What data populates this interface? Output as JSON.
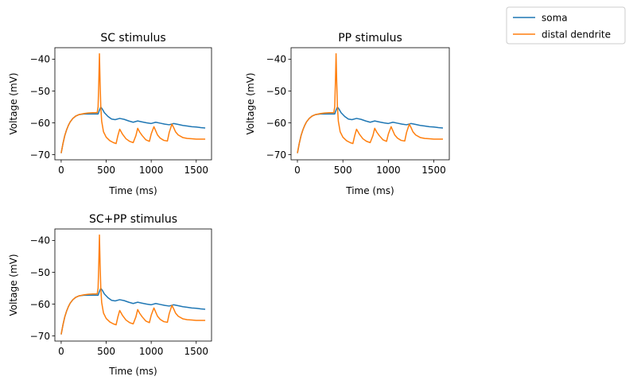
{
  "chart_data": [
    {
      "type": "line",
      "title": "SC stimulus",
      "xlabel": "Time (ms)",
      "ylabel": "Voltage (mV)",
      "xlim": [
        -70,
        1670
      ],
      "ylim": [
        -71.6,
        -36.4
      ],
      "xticks": [
        0,
        500,
        1000,
        1500
      ],
      "yticks": [
        -70,
        -60,
        -50,
        -40
      ],
      "grid": false,
      "series": [
        {
          "name": "soma",
          "color": "#1f77b4",
          "x": [
            0,
            20,
            40,
            60,
            80,
            100,
            130,
            160,
            200,
            250,
            300,
            350,
            410,
            425,
            440,
            460,
            480,
            520,
            560,
            600,
            650,
            700,
            750,
            800,
            850,
            900,
            950,
            1000,
            1050,
            1100,
            1150,
            1200,
            1250,
            1300,
            1350,
            1400,
            1450,
            1500,
            1550,
            1600
          ],
          "y": [
            -69.5,
            -66.5,
            -64,
            -62.2,
            -60.8,
            -59.7,
            -58.6,
            -57.9,
            -57.4,
            -57.2,
            -57.2,
            -57.2,
            -57.2,
            -56,
            -55,
            -55.8,
            -56.8,
            -58,
            -58.8,
            -59,
            -58.6,
            -58.9,
            -59.4,
            -59.8,
            -59.4,
            -59.7,
            -60,
            -60.2,
            -59.8,
            -60.1,
            -60.4,
            -60.6,
            -60.2,
            -60.5,
            -60.8,
            -61,
            -61.2,
            -61.3,
            -61.5,
            -61.6
          ]
        },
        {
          "name": "distal dendrite",
          "color": "#ff7f0e",
          "x": [
            0,
            20,
            40,
            60,
            80,
            100,
            130,
            160,
            200,
            250,
            300,
            350,
            400,
            410,
            418,
            425,
            432,
            440,
            450,
            470,
            500,
            540,
            580,
            610,
            630,
            650,
            680,
            720,
            760,
            800,
            830,
            850,
            870,
            900,
            940,
            980,
            1000,
            1030,
            1050,
            1070,
            1100,
            1140,
            1180,
            1200,
            1230,
            1250,
            1270,
            1300,
            1350,
            1400,
            1450,
            1500,
            1550,
            1600
          ],
          "y": [
            -69.5,
            -66.5,
            -64,
            -62.2,
            -60.8,
            -59.7,
            -58.6,
            -57.9,
            -57.4,
            -57.1,
            -56.9,
            -56.8,
            -56.8,
            -55,
            -47,
            -38.3,
            -47,
            -55,
            -59.5,
            -62.8,
            -64.5,
            -65.6,
            -66.2,
            -66.5,
            -64,
            -62,
            -63.5,
            -65,
            -65.8,
            -66.2,
            -64,
            -61.7,
            -62.8,
            -64,
            -65.3,
            -65.8,
            -63.5,
            -61.2,
            -62.5,
            -63.8,
            -64.8,
            -65.5,
            -65.7,
            -63,
            -60.4,
            -61.5,
            -62.8,
            -63.8,
            -64.6,
            -64.9,
            -65,
            -65.1,
            -65.1,
            -65.1
          ]
        }
      ]
    },
    {
      "type": "line",
      "title": "PP stimulus",
      "xlabel": "Time (ms)",
      "ylabel": "Voltage (mV)",
      "xlim": [
        -70,
        1670
      ],
      "ylim": [
        -71.6,
        -36.4
      ],
      "xticks": [
        0,
        500,
        1000,
        1500
      ],
      "yticks": [
        -70,
        -60,
        -50,
        -40
      ],
      "grid": false,
      "series": [
        {
          "name": "soma",
          "color": "#1f77b4",
          "x": [
            0,
            20,
            40,
            60,
            80,
            100,
            130,
            160,
            200,
            250,
            300,
            350,
            410,
            425,
            440,
            460,
            480,
            520,
            560,
            600,
            650,
            700,
            750,
            800,
            850,
            900,
            950,
            1000,
            1050,
            1100,
            1150,
            1200,
            1250,
            1300,
            1350,
            1400,
            1450,
            1500,
            1550,
            1600
          ],
          "y": [
            -69.5,
            -66.5,
            -64,
            -62.2,
            -60.8,
            -59.7,
            -58.6,
            -57.9,
            -57.4,
            -57.2,
            -57.2,
            -57.2,
            -57.2,
            -56,
            -55,
            -55.8,
            -56.8,
            -58,
            -58.8,
            -59,
            -58.6,
            -58.9,
            -59.4,
            -59.8,
            -59.4,
            -59.7,
            -60,
            -60.2,
            -59.8,
            -60.1,
            -60.4,
            -60.6,
            -60.2,
            -60.5,
            -60.8,
            -61,
            -61.2,
            -61.3,
            -61.5,
            -61.6
          ]
        },
        {
          "name": "distal dendrite",
          "color": "#ff7f0e",
          "x": [
            0,
            20,
            40,
            60,
            80,
            100,
            130,
            160,
            200,
            250,
            300,
            350,
            400,
            410,
            418,
            425,
            432,
            440,
            450,
            470,
            500,
            540,
            580,
            610,
            630,
            650,
            680,
            720,
            760,
            800,
            830,
            850,
            870,
            900,
            940,
            980,
            1000,
            1030,
            1050,
            1070,
            1100,
            1140,
            1180,
            1200,
            1230,
            1250,
            1270,
            1300,
            1350,
            1400,
            1450,
            1500,
            1550,
            1600
          ],
          "y": [
            -69.5,
            -66.5,
            -64,
            -62.2,
            -60.8,
            -59.7,
            -58.6,
            -57.9,
            -57.4,
            -57.1,
            -56.9,
            -56.8,
            -56.8,
            -55,
            -47,
            -38.3,
            -47,
            -55,
            -59.5,
            -62.8,
            -64.5,
            -65.6,
            -66.2,
            -66.5,
            -64,
            -62,
            -63.5,
            -65,
            -65.8,
            -66.2,
            -64,
            -61.7,
            -62.8,
            -64,
            -65.3,
            -65.8,
            -63.5,
            -61.2,
            -62.5,
            -63.8,
            -64.8,
            -65.5,
            -65.7,
            -63,
            -60.4,
            -61.5,
            -62.8,
            -63.8,
            -64.6,
            -64.9,
            -65,
            -65.1,
            -65.1,
            -65.1
          ]
        }
      ]
    },
    {
      "type": "line",
      "title": "SC+PP stimulus",
      "xlabel": "Time (ms)",
      "ylabel": "Voltage (mV)",
      "xlim": [
        -70,
        1670
      ],
      "ylim": [
        -71.6,
        -36.4
      ],
      "xticks": [
        0,
        500,
        1000,
        1500
      ],
      "yticks": [
        -70,
        -60,
        -50,
        -40
      ],
      "grid": false,
      "series": [
        {
          "name": "soma",
          "color": "#1f77b4",
          "x": [
            0,
            20,
            40,
            60,
            80,
            100,
            130,
            160,
            200,
            250,
            300,
            350,
            410,
            425,
            440,
            460,
            480,
            520,
            560,
            600,
            650,
            700,
            750,
            800,
            850,
            900,
            950,
            1000,
            1050,
            1100,
            1150,
            1200,
            1250,
            1300,
            1350,
            1400,
            1450,
            1500,
            1550,
            1600
          ],
          "y": [
            -69.5,
            -66.5,
            -64,
            -62.2,
            -60.8,
            -59.7,
            -58.6,
            -57.9,
            -57.4,
            -57.2,
            -57.2,
            -57.2,
            -57.2,
            -56,
            -55,
            -55.8,
            -56.8,
            -58,
            -58.8,
            -59,
            -58.6,
            -58.9,
            -59.4,
            -59.8,
            -59.4,
            -59.7,
            -60,
            -60.2,
            -59.8,
            -60.1,
            -60.4,
            -60.6,
            -60.2,
            -60.5,
            -60.8,
            -61,
            -61.2,
            -61.3,
            -61.5,
            -61.6
          ]
        },
        {
          "name": "distal dendrite",
          "color": "#ff7f0e",
          "x": [
            0,
            20,
            40,
            60,
            80,
            100,
            130,
            160,
            200,
            250,
            300,
            350,
            400,
            410,
            418,
            425,
            432,
            440,
            450,
            470,
            500,
            540,
            580,
            610,
            630,
            650,
            680,
            720,
            760,
            800,
            830,
            850,
            870,
            900,
            940,
            980,
            1000,
            1030,
            1050,
            1070,
            1100,
            1140,
            1180,
            1200,
            1230,
            1250,
            1270,
            1300,
            1350,
            1400,
            1450,
            1500,
            1550,
            1600
          ],
          "y": [
            -69.5,
            -66.5,
            -64,
            -62.2,
            -60.8,
            -59.7,
            -58.6,
            -57.9,
            -57.4,
            -57.1,
            -56.9,
            -56.8,
            -56.8,
            -55,
            -47,
            -38.3,
            -47,
            -55,
            -59.5,
            -62.8,
            -64.5,
            -65.6,
            -66.2,
            -66.5,
            -64,
            -62,
            -63.5,
            -65,
            -65.8,
            -66.2,
            -64,
            -61.7,
            -62.8,
            -64,
            -65.3,
            -65.8,
            -63.5,
            -61.2,
            -62.5,
            -63.8,
            -64.8,
            -65.5,
            -65.7,
            -63,
            -60.4,
            -61.5,
            -62.8,
            -63.8,
            -64.6,
            -64.9,
            -65,
            -65.1,
            -65.1,
            -65.1
          ]
        }
      ]
    }
  ],
  "legend": {
    "placement": "top-right",
    "entries": [
      {
        "label": "soma",
        "color": "#1f77b4"
      },
      {
        "label": "distal dendrite",
        "color": "#ff7f0e"
      }
    ]
  }
}
